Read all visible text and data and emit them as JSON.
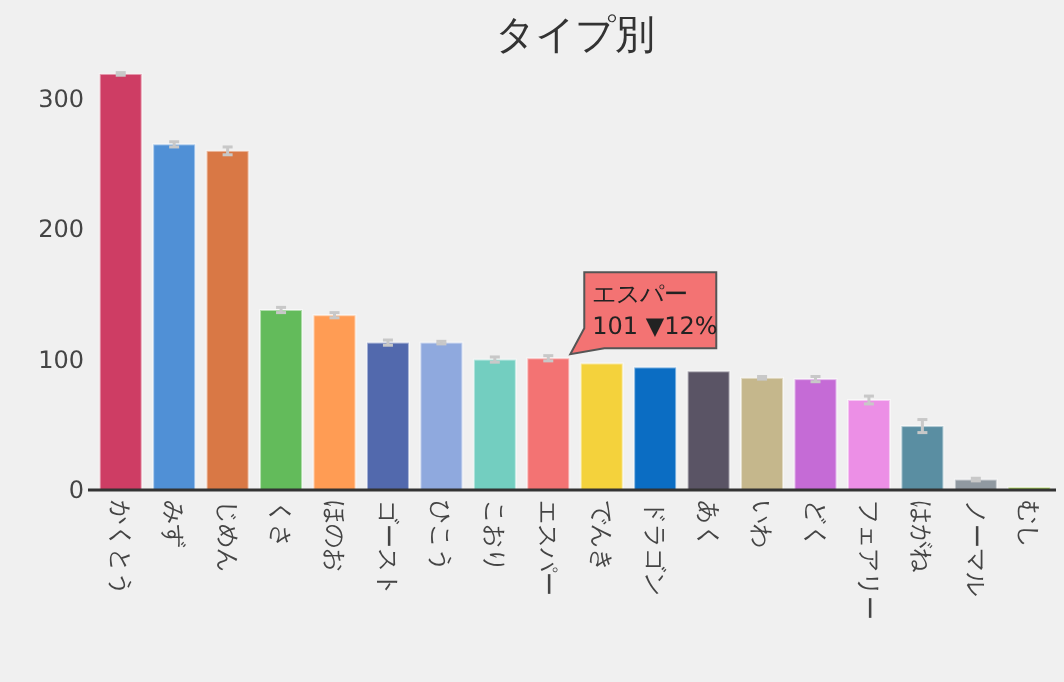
{
  "chart_data": {
    "type": "bar",
    "title": "タイプ別",
    "categories": [
      "かくとう",
      "みず",
      "じめん",
      "くさ",
      "ほのお",
      "ゴースト",
      "ひこう",
      "こおり",
      "エスパー",
      "でんき",
      "ドラゴン",
      "あく",
      "いわ",
      "どく",
      "フェアリー",
      "はがね",
      "ノーマル",
      "むし"
    ],
    "values": [
      319,
      265,
      260,
      138,
      134,
      113,
      113,
      100,
      101,
      97,
      94,
      91,
      86,
      85,
      69,
      49,
      8,
      2
    ],
    "errors": [
      1,
      2,
      3,
      2,
      2,
      2,
      1,
      2,
      2,
      null,
      null,
      null,
      1,
      2,
      3,
      5,
      1,
      null
    ],
    "colors": [
      "#ce3d64",
      "#5090d6",
      "#d97845",
      "#63bb5b",
      "#ff9c54",
      "#5269ad",
      "#8fa9de",
      "#73cec0",
      "#f37373",
      "#f4d23c",
      "#0b6dc3",
      "#5a5465",
      "#c5b78c",
      "#c56bd6",
      "#ec8fe6",
      "#5a8ea2",
      "#9099a1",
      "#90c12c"
    ],
    "ylim": [
      0,
      322
    ],
    "yticks": [
      0,
      100,
      200,
      300
    ],
    "grid": false,
    "annotations": [
      {
        "text": "エスパー\n101 ▼12%",
        "x": "エスパー",
        "y": 101
      }
    ]
  }
}
